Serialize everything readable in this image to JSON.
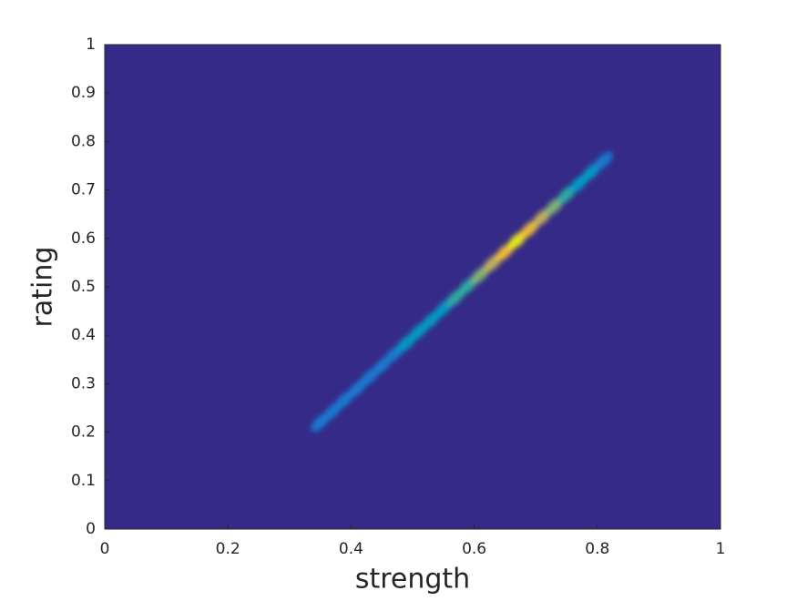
{
  "chart_data": {
    "type": "heatmap",
    "xlabel": "strength",
    "ylabel": "rating",
    "xlim": [
      0,
      1
    ],
    "ylim": [
      0,
      1
    ],
    "xticks": [
      0,
      0.2,
      0.4,
      0.6,
      0.8,
      1
    ],
    "yticks": [
      0,
      0.1,
      0.2,
      0.3,
      0.4,
      0.5,
      0.6,
      0.7,
      0.8,
      0.9,
      1
    ],
    "colormap": [
      "#352a87",
      "#0f5cdd",
      "#1481d6",
      "#06a4ca",
      "#2eb7a4",
      "#87bf77",
      "#d1bb59",
      "#fec832",
      "#f9fb0e"
    ],
    "x": [
      0.35,
      0.37,
      0.39,
      0.41,
      0.43,
      0.45,
      0.47,
      0.49,
      0.51,
      0.53,
      0.55,
      0.57,
      0.59,
      0.61,
      0.63,
      0.65,
      0.67,
      0.69,
      0.71,
      0.73,
      0.75,
      0.77,
      0.79,
      0.81
    ],
    "y": [
      0.22,
      0.243,
      0.267,
      0.29,
      0.314,
      0.337,
      0.361,
      0.384,
      0.408,
      0.431,
      0.455,
      0.478,
      0.502,
      0.525,
      0.549,
      0.572,
      0.596,
      0.619,
      0.643,
      0.666,
      0.69,
      0.713,
      0.737,
      0.76
    ],
    "values": [
      0.3,
      0.28,
      0.26,
      0.26,
      0.28,
      0.3,
      0.3,
      0.32,
      0.35,
      0.38,
      0.42,
      0.46,
      0.52,
      0.6,
      0.72,
      0.85,
      1.0,
      0.9,
      0.75,
      0.6,
      0.5,
      0.42,
      0.35,
      0.25
    ]
  }
}
